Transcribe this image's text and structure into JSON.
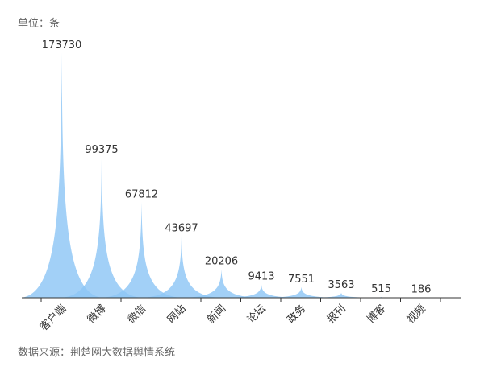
{
  "unit_label": "单位：条",
  "source_label": "数据来源：荆楚网大数据舆情系统",
  "colors": {
    "fill": "#8ec6f5",
    "axis": "#333333",
    "label": "#333333"
  },
  "chart_data": {
    "type": "area",
    "title": "",
    "xlabel": "",
    "ylabel": "",
    "categories": [
      "客户端",
      "微博",
      "微信",
      "网站",
      "新闻",
      "论坛",
      "政务",
      "报刊",
      "博客",
      "视频"
    ],
    "values": [
      173730,
      99375,
      67812,
      43697,
      20206,
      9413,
      7551,
      3563,
      515,
      186
    ],
    "ylim": [
      0,
      173730
    ],
    "grid": false,
    "legend": "none"
  }
}
